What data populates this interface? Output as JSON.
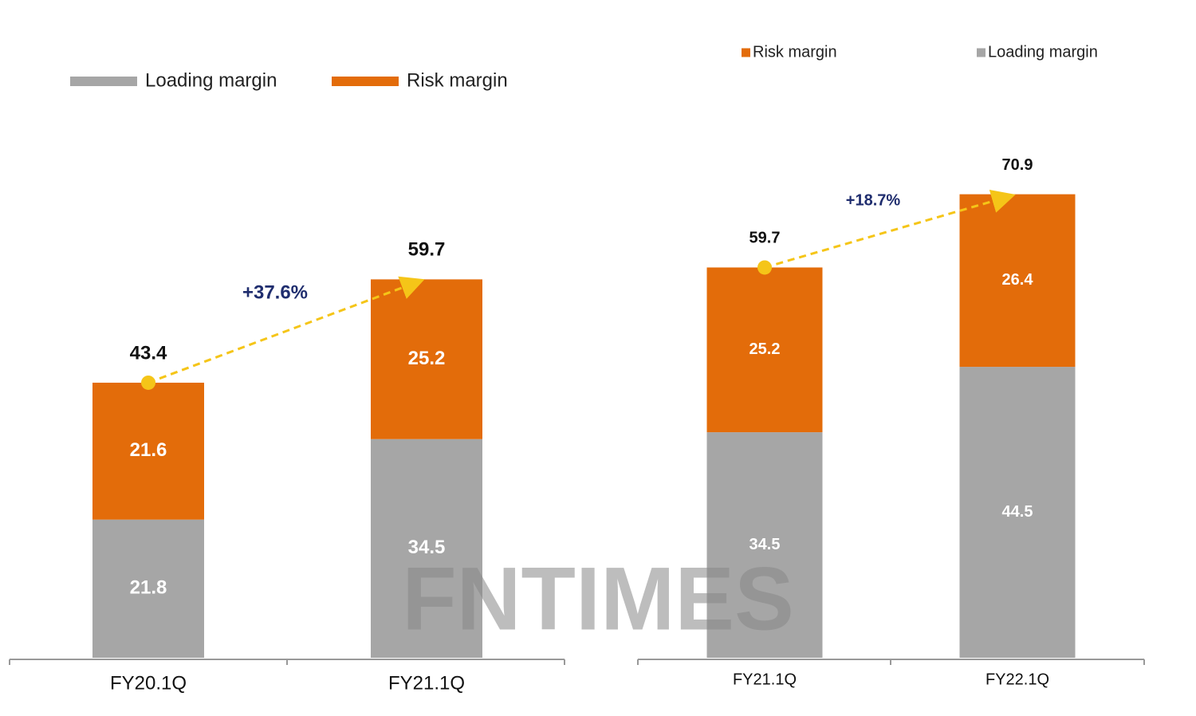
{
  "watermark": "FNTIMES",
  "chart_data": [
    {
      "type": "stacked_bar",
      "categories": [
        "FY20.1Q",
        "FY21.1Q"
      ],
      "series": [
        {
          "name": "Loading margin",
          "color": "#a6a6a6",
          "values": [
            21.8,
            34.5
          ]
        },
        {
          "name": "Risk margin",
          "color": "#e36c0a",
          "values": [
            21.6,
            25.2
          ]
        }
      ],
      "totals": [
        43.4,
        59.7
      ],
      "annotation": "+37.6%"
    },
    {
      "type": "stacked_bar",
      "categories": [
        "FY21.1Q",
        "FY22.1Q"
      ],
      "series": [
        {
          "name": "Loading margin",
          "color": "#a6a6a6",
          "values": [
            34.5,
            44.5
          ]
        },
        {
          "name": "Risk margin",
          "color": "#e36c0a",
          "values": [
            25.2,
            26.4
          ]
        }
      ],
      "totals": [
        59.7,
        70.9
      ],
      "annotation": "+18.7%"
    }
  ]
}
